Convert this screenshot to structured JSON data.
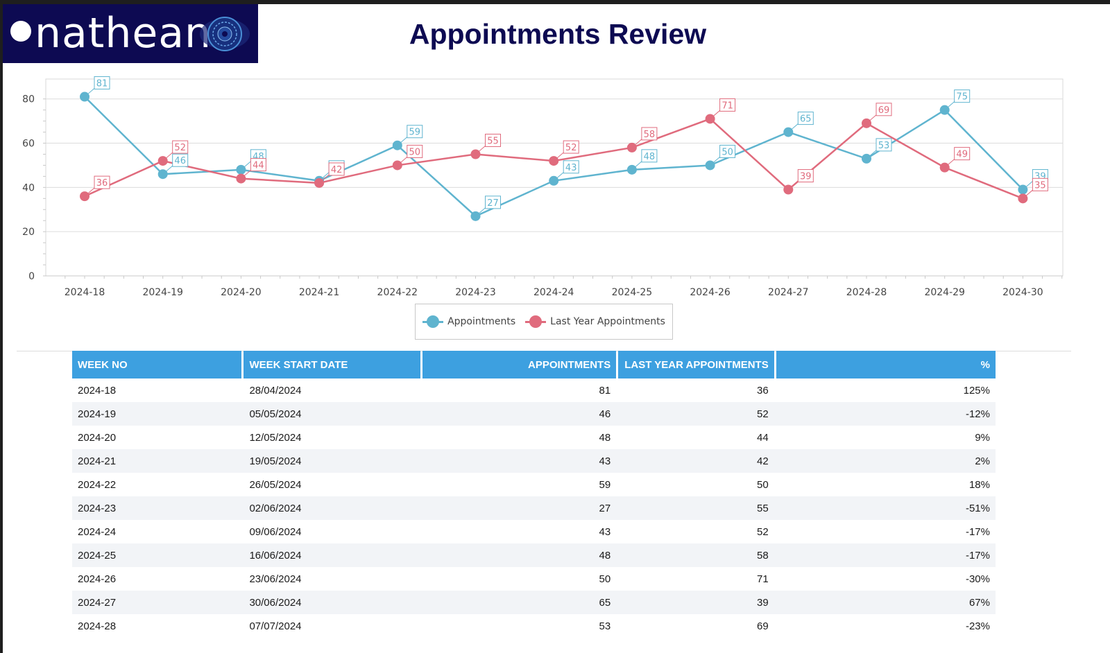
{
  "logo": {
    "text": "nathean"
  },
  "title": "Appointments Review",
  "colors": {
    "appointments": "#5fb4cf",
    "last_year": "#e06b7d",
    "header": "#3da0e0",
    "logo_bg": "#0d0a52"
  },
  "chart_data": {
    "type": "line",
    "categories": [
      "2024-18",
      "2024-19",
      "2024-20",
      "2024-21",
      "2024-22",
      "2024-23",
      "2024-24",
      "2024-25",
      "2024-26",
      "2024-27",
      "2024-28",
      "2024-29",
      "2024-30"
    ],
    "series": [
      {
        "name": "Appointments",
        "values": [
          81,
          46,
          48,
          43,
          59,
          27,
          43,
          48,
          50,
          65,
          53,
          75,
          39
        ]
      },
      {
        "name": "Last Year Appointments",
        "values": [
          36,
          52,
          44,
          42,
          50,
          55,
          52,
          58,
          71,
          39,
          69,
          49,
          35
        ]
      }
    ],
    "y_ticks": [
      "0",
      "20",
      "40",
      "60",
      "80"
    ],
    "ylim": [
      0,
      89
    ],
    "grid": true,
    "legend": "bottom-center"
  },
  "table": {
    "headers": [
      "WEEK NO",
      "WEEK START DATE",
      "APPOINTMENTS",
      "LAST YEAR APPOINTMENTS",
      "%"
    ],
    "rows": [
      [
        "2024-18",
        "28/04/2024",
        "81",
        "36",
        "125%"
      ],
      [
        "2024-19",
        "05/05/2024",
        "46",
        "52",
        "-12%"
      ],
      [
        "2024-20",
        "12/05/2024",
        "48",
        "44",
        "9%"
      ],
      [
        "2024-21",
        "19/05/2024",
        "43",
        "42",
        "2%"
      ],
      [
        "2024-22",
        "26/05/2024",
        "59",
        "50",
        "18%"
      ],
      [
        "2024-23",
        "02/06/2024",
        "27",
        "55",
        "-51%"
      ],
      [
        "2024-24",
        "09/06/2024",
        "43",
        "52",
        "-17%"
      ],
      [
        "2024-25",
        "16/06/2024",
        "48",
        "58",
        "-17%"
      ],
      [
        "2024-26",
        "23/06/2024",
        "50",
        "71",
        "-30%"
      ],
      [
        "2024-27",
        "30/06/2024",
        "65",
        "39",
        "67%"
      ],
      [
        "2024-28",
        "07/07/2024",
        "53",
        "69",
        "-23%"
      ]
    ]
  }
}
